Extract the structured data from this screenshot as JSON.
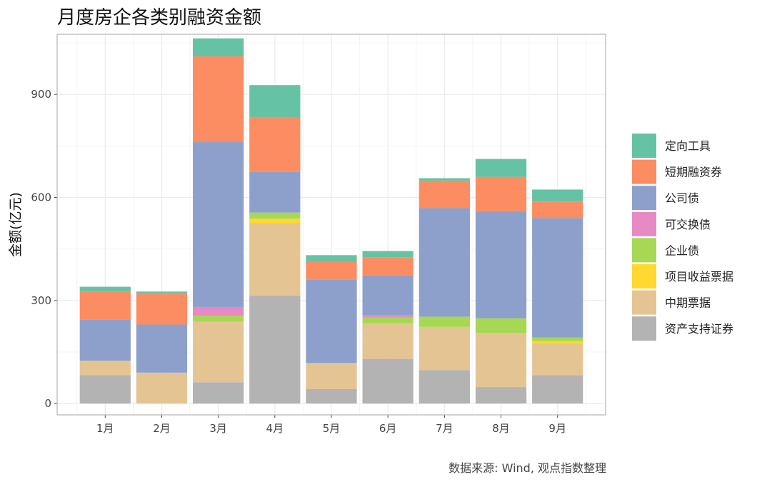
{
  "chart_data": {
    "type": "bar",
    "stacked": true,
    "title": "月度房企各类别融资金额",
    "xlabel": "",
    "ylabel": "金额(亿元)",
    "ylim": [
      -33,
      1075
    ],
    "yticks": [
      0,
      300,
      600,
      900
    ],
    "categories": [
      "1月",
      "2月",
      "3月",
      "4月",
      "5月",
      "6月",
      "7月",
      "8月",
      "9月"
    ],
    "grid": true,
    "legend_position": "right",
    "series": [
      {
        "name": "资产支持证券",
        "color": "#B3B3B3",
        "values": [
          83,
          0,
          62,
          314,
          42,
          130,
          97,
          48,
          83
        ]
      },
      {
        "name": "中期票据",
        "color": "#E5C494",
        "values": [
          42,
          90,
          176,
          212,
          76,
          104,
          126,
          158,
          92
        ]
      },
      {
        "name": "项目收益票据",
        "color": "#FFD92F",
        "values": [
          0,
          0,
          0,
          12,
          0,
          0,
          0,
          0,
          7
        ]
      },
      {
        "name": "企业债",
        "color": "#A6D854",
        "values": [
          0,
          0,
          18,
          18,
          0,
          16,
          30,
          42,
          10
        ]
      },
      {
        "name": "可交换债",
        "color": "#E78AC3",
        "values": [
          0,
          0,
          25,
          0,
          0,
          8,
          0,
          0,
          0
        ]
      },
      {
        "name": "公司债",
        "color": "#8DA0CB",
        "values": [
          120,
          140,
          480,
          118,
          242,
          116,
          316,
          312,
          348
        ]
      },
      {
        "name": "短期融资券",
        "color": "#FC8D62",
        "values": [
          80,
          90,
          250,
          158,
          52,
          52,
          80,
          100,
          48
        ]
      },
      {
        "name": "定向工具",
        "color": "#66C2A5",
        "values": [
          15,
          6,
          52,
          95,
          20,
          18,
          7,
          52,
          35
        ]
      }
    ],
    "legend_order": [
      "定向工具",
      "短期融资券",
      "公司债",
      "可交换债",
      "企业债",
      "项目收益票据",
      "中期票据",
      "资产支持证券"
    ]
  },
  "caption": "数据来源: Wind, 观点指数整理",
  "colors": {
    "panel_border": "#B3B3B3",
    "grid_major": "#EBEBEB",
    "grid_minor": "#F4F4F4"
  }
}
